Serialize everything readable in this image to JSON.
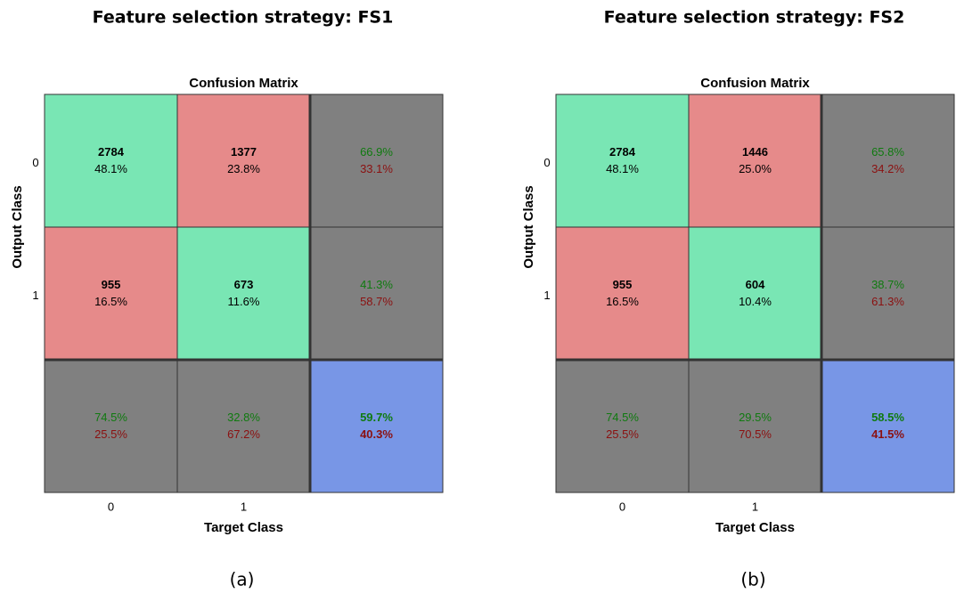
{
  "panels": [
    {
      "heading": "Feature selection strategy: FS1",
      "matrix_title": "Confusion Matrix",
      "y_label": "Output Class",
      "x_label": "Target Class",
      "row_labels": [
        "0",
        "1"
      ],
      "col_labels": [
        "0",
        "1"
      ],
      "cells": [
        [
          {
            "count": "2784",
            "percent": "48.1%"
          },
          {
            "count": "1377",
            "percent": "23.8%"
          }
        ],
        [
          {
            "count": "955",
            "percent": "16.5%"
          },
          {
            "count": "673",
            "percent": "11.6%"
          }
        ]
      ],
      "row_summary": [
        {
          "correct": "66.9%",
          "wrong": "33.1%"
        },
        {
          "correct": "41.3%",
          "wrong": "58.7%"
        }
      ],
      "col_summary": [
        {
          "correct": "74.5%",
          "wrong": "25.5%"
        },
        {
          "correct": "32.8%",
          "wrong": "67.2%"
        }
      ],
      "overall": {
        "correct": "59.7%",
        "wrong": "40.3%"
      },
      "caption": "(a)"
    },
    {
      "heading": "Feature selection strategy: FS2",
      "matrix_title": "Confusion Matrix",
      "y_label": "Output Class",
      "x_label": "Target Class",
      "row_labels": [
        "0",
        "1"
      ],
      "col_labels": [
        "0",
        "1"
      ],
      "cells": [
        [
          {
            "count": "2784",
            "percent": "48.1%"
          },
          {
            "count": "1446",
            "percent": "25.0%"
          }
        ],
        [
          {
            "count": "955",
            "percent": "16.5%"
          },
          {
            "count": "604",
            "percent": "10.4%"
          }
        ]
      ],
      "row_summary": [
        {
          "correct": "65.8%",
          "wrong": "34.2%"
        },
        {
          "correct": "38.7%",
          "wrong": "61.3%"
        }
      ],
      "col_summary": [
        {
          "correct": "74.5%",
          "wrong": "25.5%"
        },
        {
          "correct": "29.5%",
          "wrong": "70.5%"
        }
      ],
      "overall": {
        "correct": "58.5%",
        "wrong": "41.5%"
      },
      "caption": "(b)"
    }
  ]
}
